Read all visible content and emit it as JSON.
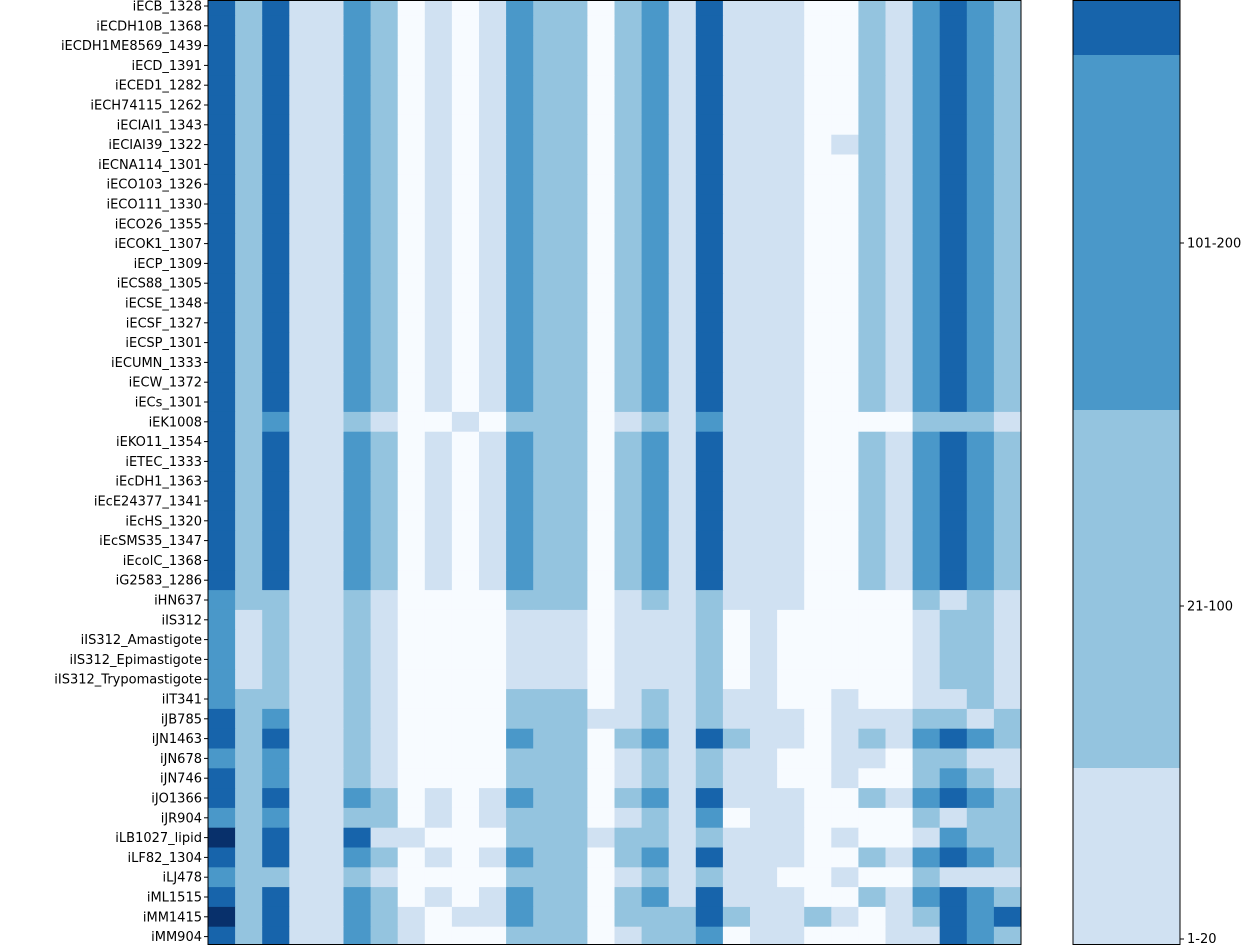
{
  "chart_data": {
    "type": "heatmap",
    "title": "",
    "xlabel": "",
    "ylabel": "",
    "grid": false,
    "legend": "colorbar-right",
    "levels": [
      {
        "label": "",
        "color": "#f7fbff"
      },
      {
        "label": "1-20",
        "color": "#d0e1f2"
      },
      {
        "label": "21-100",
        "color": "#94c4df"
      },
      {
        "label": "101-200",
        "color": "#4a98c9"
      },
      {
        "label": "",
        "color": "#1764ab"
      },
      {
        "label": "",
        "color": "#08306b"
      }
    ],
    "colorbar_levels_shown": [
      4,
      3,
      2,
      1
    ],
    "rows": [
      "iECB_1328",
      "iECDH10B_1368",
      "iECDH1ME8569_1439",
      "iECD_1391",
      "iECED1_1282",
      "iECH74115_1262",
      "iECIAI1_1343",
      "iECIAI39_1322",
      "iECNA114_1301",
      "iECO103_1326",
      "iECO111_1330",
      "iECO26_1355",
      "iECOK1_1307",
      "iECP_1309",
      "iECS88_1305",
      "iECSE_1348",
      "iECSF_1327",
      "iECSP_1301",
      "iECUMN_1333",
      "iECW_1372",
      "iECs_1301",
      "iEK1008",
      "iEKO11_1354",
      "iETEC_1333",
      "iEcDH1_1363",
      "iEcE24377_1341",
      "iEcHS_1320",
      "iEcSMS35_1347",
      "iEcolC_1368",
      "iG2583_1286",
      "iHN637",
      "iIS312",
      "iIS312_Amastigote",
      "iIS312_Epimastigote",
      "iIS312_Trypomastigote",
      "iIT341",
      "iJB785",
      "iJN1463",
      "iJN678",
      "iJN746",
      "iJO1366",
      "iJR904",
      "iLB1027_lipid",
      "iLF82_1304",
      "iLJ478",
      "iML1515",
      "iMM1415",
      "iMM904"
    ],
    "values": [
      [
        4,
        2,
        4,
        1,
        1,
        3,
        2,
        0,
        1,
        0,
        1,
        3,
        2,
        2,
        0,
        2,
        3,
        1,
        4,
        1,
        1,
        1,
        0,
        0,
        2,
        1,
        3,
        4,
        3,
        2
      ],
      [
        4,
        2,
        4,
        1,
        1,
        3,
        2,
        0,
        1,
        0,
        1,
        3,
        2,
        2,
        0,
        2,
        3,
        1,
        4,
        1,
        1,
        1,
        0,
        0,
        2,
        1,
        3,
        4,
        3,
        2
      ],
      [
        4,
        2,
        4,
        1,
        1,
        3,
        2,
        0,
        1,
        0,
        1,
        3,
        2,
        2,
        0,
        2,
        3,
        1,
        4,
        1,
        1,
        1,
        0,
        0,
        2,
        1,
        3,
        4,
        3,
        2
      ],
      [
        4,
        2,
        4,
        1,
        1,
        3,
        2,
        0,
        1,
        0,
        1,
        3,
        2,
        2,
        0,
        2,
        3,
        1,
        4,
        1,
        1,
        1,
        0,
        0,
        2,
        1,
        3,
        4,
        3,
        2
      ],
      [
        4,
        2,
        4,
        1,
        1,
        3,
        2,
        0,
        1,
        0,
        1,
        3,
        2,
        2,
        0,
        2,
        3,
        1,
        4,
        1,
        1,
        1,
        0,
        0,
        2,
        1,
        3,
        4,
        3,
        2
      ],
      [
        4,
        2,
        4,
        1,
        1,
        3,
        2,
        0,
        1,
        0,
        1,
        3,
        2,
        2,
        0,
        2,
        3,
        1,
        4,
        1,
        1,
        1,
        0,
        0,
        2,
        1,
        3,
        4,
        3,
        2
      ],
      [
        4,
        2,
        4,
        1,
        1,
        3,
        2,
        0,
        1,
        0,
        1,
        3,
        2,
        2,
        0,
        2,
        3,
        1,
        4,
        1,
        1,
        1,
        0,
        0,
        2,
        1,
        3,
        4,
        3,
        2
      ],
      [
        4,
        2,
        4,
        1,
        1,
        3,
        2,
        0,
        1,
        0,
        1,
        3,
        2,
        2,
        0,
        2,
        3,
        1,
        4,
        1,
        1,
        1,
        0,
        1,
        2,
        1,
        3,
        4,
        3,
        2
      ],
      [
        4,
        2,
        4,
        1,
        1,
        3,
        2,
        0,
        1,
        0,
        1,
        3,
        2,
        2,
        0,
        2,
        3,
        1,
        4,
        1,
        1,
        1,
        0,
        0,
        2,
        1,
        3,
        4,
        3,
        2
      ],
      [
        4,
        2,
        4,
        1,
        1,
        3,
        2,
        0,
        1,
        0,
        1,
        3,
        2,
        2,
        0,
        2,
        3,
        1,
        4,
        1,
        1,
        1,
        0,
        0,
        2,
        1,
        3,
        4,
        3,
        2
      ],
      [
        4,
        2,
        4,
        1,
        1,
        3,
        2,
        0,
        1,
        0,
        1,
        3,
        2,
        2,
        0,
        2,
        3,
        1,
        4,
        1,
        1,
        1,
        0,
        0,
        2,
        1,
        3,
        4,
        3,
        2
      ],
      [
        4,
        2,
        4,
        1,
        1,
        3,
        2,
        0,
        1,
        0,
        1,
        3,
        2,
        2,
        0,
        2,
        3,
        1,
        4,
        1,
        1,
        1,
        0,
        0,
        2,
        1,
        3,
        4,
        3,
        2
      ],
      [
        4,
        2,
        4,
        1,
        1,
        3,
        2,
        0,
        1,
        0,
        1,
        3,
        2,
        2,
        0,
        2,
        3,
        1,
        4,
        1,
        1,
        1,
        0,
        0,
        2,
        1,
        3,
        4,
        3,
        2
      ],
      [
        4,
        2,
        4,
        1,
        1,
        3,
        2,
        0,
        1,
        0,
        1,
        3,
        2,
        2,
        0,
        2,
        3,
        1,
        4,
        1,
        1,
        1,
        0,
        0,
        2,
        1,
        3,
        4,
        3,
        2
      ],
      [
        4,
        2,
        4,
        1,
        1,
        3,
        2,
        0,
        1,
        0,
        1,
        3,
        2,
        2,
        0,
        2,
        3,
        1,
        4,
        1,
        1,
        1,
        0,
        0,
        2,
        1,
        3,
        4,
        3,
        2
      ],
      [
        4,
        2,
        4,
        1,
        1,
        3,
        2,
        0,
        1,
        0,
        1,
        3,
        2,
        2,
        0,
        2,
        3,
        1,
        4,
        1,
        1,
        1,
        0,
        0,
        2,
        1,
        3,
        4,
        3,
        2
      ],
      [
        4,
        2,
        4,
        1,
        1,
        3,
        2,
        0,
        1,
        0,
        1,
        3,
        2,
        2,
        0,
        2,
        3,
        1,
        4,
        1,
        1,
        1,
        0,
        0,
        2,
        1,
        3,
        4,
        3,
        2
      ],
      [
        4,
        2,
        4,
        1,
        1,
        3,
        2,
        0,
        1,
        0,
        1,
        3,
        2,
        2,
        0,
        2,
        3,
        1,
        4,
        1,
        1,
        1,
        0,
        0,
        2,
        1,
        3,
        4,
        3,
        2
      ],
      [
        4,
        2,
        4,
        1,
        1,
        3,
        2,
        0,
        1,
        0,
        1,
        3,
        2,
        2,
        0,
        2,
        3,
        1,
        4,
        1,
        1,
        1,
        0,
        0,
        2,
        1,
        3,
        4,
        3,
        2
      ],
      [
        4,
        2,
        4,
        1,
        1,
        3,
        2,
        0,
        1,
        0,
        1,
        3,
        2,
        2,
        0,
        2,
        3,
        1,
        4,
        1,
        1,
        1,
        0,
        0,
        2,
        1,
        3,
        4,
        3,
        2
      ],
      [
        4,
        2,
        4,
        1,
        1,
        3,
        2,
        0,
        1,
        0,
        1,
        3,
        2,
        2,
        0,
        2,
        3,
        1,
        4,
        1,
        1,
        1,
        0,
        0,
        2,
        1,
        3,
        4,
        3,
        2
      ],
      [
        4,
        2,
        3,
        1,
        1,
        2,
        1,
        0,
        0,
        1,
        0,
        2,
        2,
        2,
        0,
        1,
        2,
        1,
        3,
        1,
        1,
        1,
        0,
        0,
        0,
        0,
        2,
        2,
        2,
        1
      ],
      [
        4,
        2,
        4,
        1,
        1,
        3,
        2,
        0,
        1,
        0,
        1,
        3,
        2,
        2,
        0,
        2,
        3,
        1,
        4,
        1,
        1,
        1,
        0,
        0,
        2,
        1,
        3,
        4,
        3,
        2
      ],
      [
        4,
        2,
        4,
        1,
        1,
        3,
        2,
        0,
        1,
        0,
        1,
        3,
        2,
        2,
        0,
        2,
        3,
        1,
        4,
        1,
        1,
        1,
        0,
        0,
        2,
        1,
        3,
        4,
        3,
        2
      ],
      [
        4,
        2,
        4,
        1,
        1,
        3,
        2,
        0,
        1,
        0,
        1,
        3,
        2,
        2,
        0,
        2,
        3,
        1,
        4,
        1,
        1,
        1,
        0,
        0,
        2,
        1,
        3,
        4,
        3,
        2
      ],
      [
        4,
        2,
        4,
        1,
        1,
        3,
        2,
        0,
        1,
        0,
        1,
        3,
        2,
        2,
        0,
        2,
        3,
        1,
        4,
        1,
        1,
        1,
        0,
        0,
        2,
        1,
        3,
        4,
        3,
        2
      ],
      [
        4,
        2,
        4,
        1,
        1,
        3,
        2,
        0,
        1,
        0,
        1,
        3,
        2,
        2,
        0,
        2,
        3,
        1,
        4,
        1,
        1,
        1,
        0,
        0,
        2,
        1,
        3,
        4,
        3,
        2
      ],
      [
        4,
        2,
        4,
        1,
        1,
        3,
        2,
        0,
        1,
        0,
        1,
        3,
        2,
        2,
        0,
        2,
        3,
        1,
        4,
        1,
        1,
        1,
        0,
        0,
        2,
        1,
        3,
        4,
        3,
        2
      ],
      [
        4,
        2,
        4,
        1,
        1,
        3,
        2,
        0,
        1,
        0,
        1,
        3,
        2,
        2,
        0,
        2,
        3,
        1,
        4,
        1,
        1,
        1,
        0,
        0,
        2,
        1,
        3,
        4,
        3,
        2
      ],
      [
        4,
        2,
        4,
        1,
        1,
        3,
        2,
        0,
        1,
        0,
        1,
        3,
        2,
        2,
        0,
        2,
        3,
        1,
        4,
        1,
        1,
        1,
        0,
        0,
        2,
        1,
        3,
        4,
        3,
        2
      ],
      [
        3,
        2,
        2,
        1,
        1,
        2,
        1,
        0,
        0,
        0,
        0,
        2,
        2,
        2,
        0,
        1,
        2,
        1,
        2,
        1,
        1,
        1,
        0,
        0,
        0,
        0,
        2,
        1,
        2,
        1
      ],
      [
        3,
        1,
        2,
        1,
        1,
        2,
        1,
        0,
        0,
        0,
        0,
        1,
        1,
        1,
        0,
        1,
        1,
        1,
        2,
        0,
        1,
        0,
        0,
        0,
        0,
        0,
        1,
        2,
        2,
        1
      ],
      [
        3,
        1,
        2,
        1,
        1,
        2,
        1,
        0,
        0,
        0,
        0,
        1,
        1,
        1,
        0,
        1,
        1,
        1,
        2,
        0,
        1,
        0,
        0,
        0,
        0,
        0,
        1,
        2,
        2,
        1
      ],
      [
        3,
        1,
        2,
        1,
        1,
        2,
        1,
        0,
        0,
        0,
        0,
        1,
        1,
        1,
        0,
        1,
        1,
        1,
        2,
        0,
        1,
        0,
        0,
        0,
        0,
        0,
        1,
        2,
        2,
        1
      ],
      [
        3,
        1,
        2,
        1,
        1,
        2,
        1,
        0,
        0,
        0,
        0,
        1,
        1,
        1,
        0,
        1,
        1,
        1,
        2,
        0,
        1,
        0,
        0,
        0,
        0,
        0,
        1,
        2,
        2,
        1
      ],
      [
        3,
        2,
        2,
        1,
        1,
        2,
        1,
        0,
        0,
        0,
        0,
        2,
        2,
        2,
        0,
        1,
        2,
        1,
        2,
        1,
        1,
        0,
        0,
        1,
        0,
        0,
        1,
        1,
        2,
        1
      ],
      [
        4,
        2,
        3,
        1,
        1,
        2,
        1,
        0,
        0,
        0,
        0,
        2,
        2,
        2,
        1,
        1,
        2,
        1,
        2,
        1,
        1,
        1,
        0,
        1,
        1,
        1,
        2,
        2,
        1,
        2
      ],
      [
        4,
        2,
        4,
        1,
        1,
        2,
        1,
        0,
        0,
        0,
        0,
        3,
        2,
        2,
        0,
        2,
        3,
        1,
        4,
        2,
        1,
        1,
        0,
        1,
        2,
        1,
        3,
        4,
        3,
        2
      ],
      [
        3,
        2,
        3,
        1,
        1,
        2,
        1,
        0,
        0,
        0,
        0,
        2,
        2,
        2,
        0,
        1,
        2,
        1,
        2,
        1,
        1,
        0,
        0,
        1,
        1,
        0,
        2,
        2,
        1,
        1
      ],
      [
        4,
        2,
        3,
        1,
        1,
        2,
        1,
        0,
        0,
        0,
        0,
        2,
        2,
        2,
        0,
        1,
        2,
        1,
        2,
        1,
        1,
        0,
        0,
        1,
        0,
        0,
        2,
        3,
        2,
        1
      ],
      [
        4,
        2,
        4,
        1,
        1,
        3,
        2,
        0,
        1,
        0,
        1,
        3,
        2,
        2,
        0,
        2,
        3,
        1,
        4,
        1,
        1,
        1,
        0,
        0,
        2,
        1,
        3,
        4,
        3,
        2
      ],
      [
        3,
        2,
        3,
        1,
        1,
        2,
        2,
        0,
        1,
        0,
        1,
        2,
        2,
        2,
        0,
        1,
        2,
        1,
        3,
        0,
        1,
        1,
        0,
        0,
        0,
        0,
        2,
        1,
        2,
        2
      ],
      [
        5,
        2,
        4,
        1,
        1,
        4,
        1,
        1,
        0,
        0,
        0,
        2,
        2,
        2,
        1,
        2,
        2,
        1,
        2,
        1,
        1,
        1,
        0,
        1,
        0,
        0,
        1,
        3,
        2,
        2
      ],
      [
        4,
        2,
        4,
        1,
        1,
        3,
        2,
        0,
        1,
        0,
        1,
        3,
        2,
        2,
        0,
        2,
        3,
        1,
        4,
        1,
        1,
        1,
        0,
        0,
        2,
        1,
        3,
        4,
        3,
        2
      ],
      [
        3,
        2,
        2,
        1,
        1,
        2,
        1,
        0,
        0,
        0,
        0,
        2,
        2,
        2,
        0,
        1,
        2,
        1,
        2,
        1,
        1,
        0,
        0,
        1,
        0,
        0,
        2,
        1,
        1,
        1
      ],
      [
        4,
        2,
        4,
        1,
        1,
        3,
        2,
        0,
        1,
        0,
        1,
        3,
        2,
        2,
        0,
        2,
        3,
        1,
        4,
        1,
        1,
        1,
        0,
        0,
        2,
        1,
        3,
        4,
        3,
        2
      ],
      [
        5,
        2,
        4,
        1,
        1,
        3,
        2,
        1,
        0,
        1,
        1,
        3,
        2,
        2,
        0,
        2,
        2,
        2,
        4,
        2,
        1,
        1,
        2,
        1,
        0,
        1,
        2,
        4,
        3,
        4
      ],
      [
        4,
        2,
        4,
        1,
        1,
        3,
        2,
        1,
        0,
        0,
        0,
        2,
        2,
        2,
        0,
        1,
        2,
        2,
        3,
        0,
        1,
        1,
        0,
        0,
        0,
        1,
        1,
        4,
        3,
        2
      ]
    ]
  }
}
